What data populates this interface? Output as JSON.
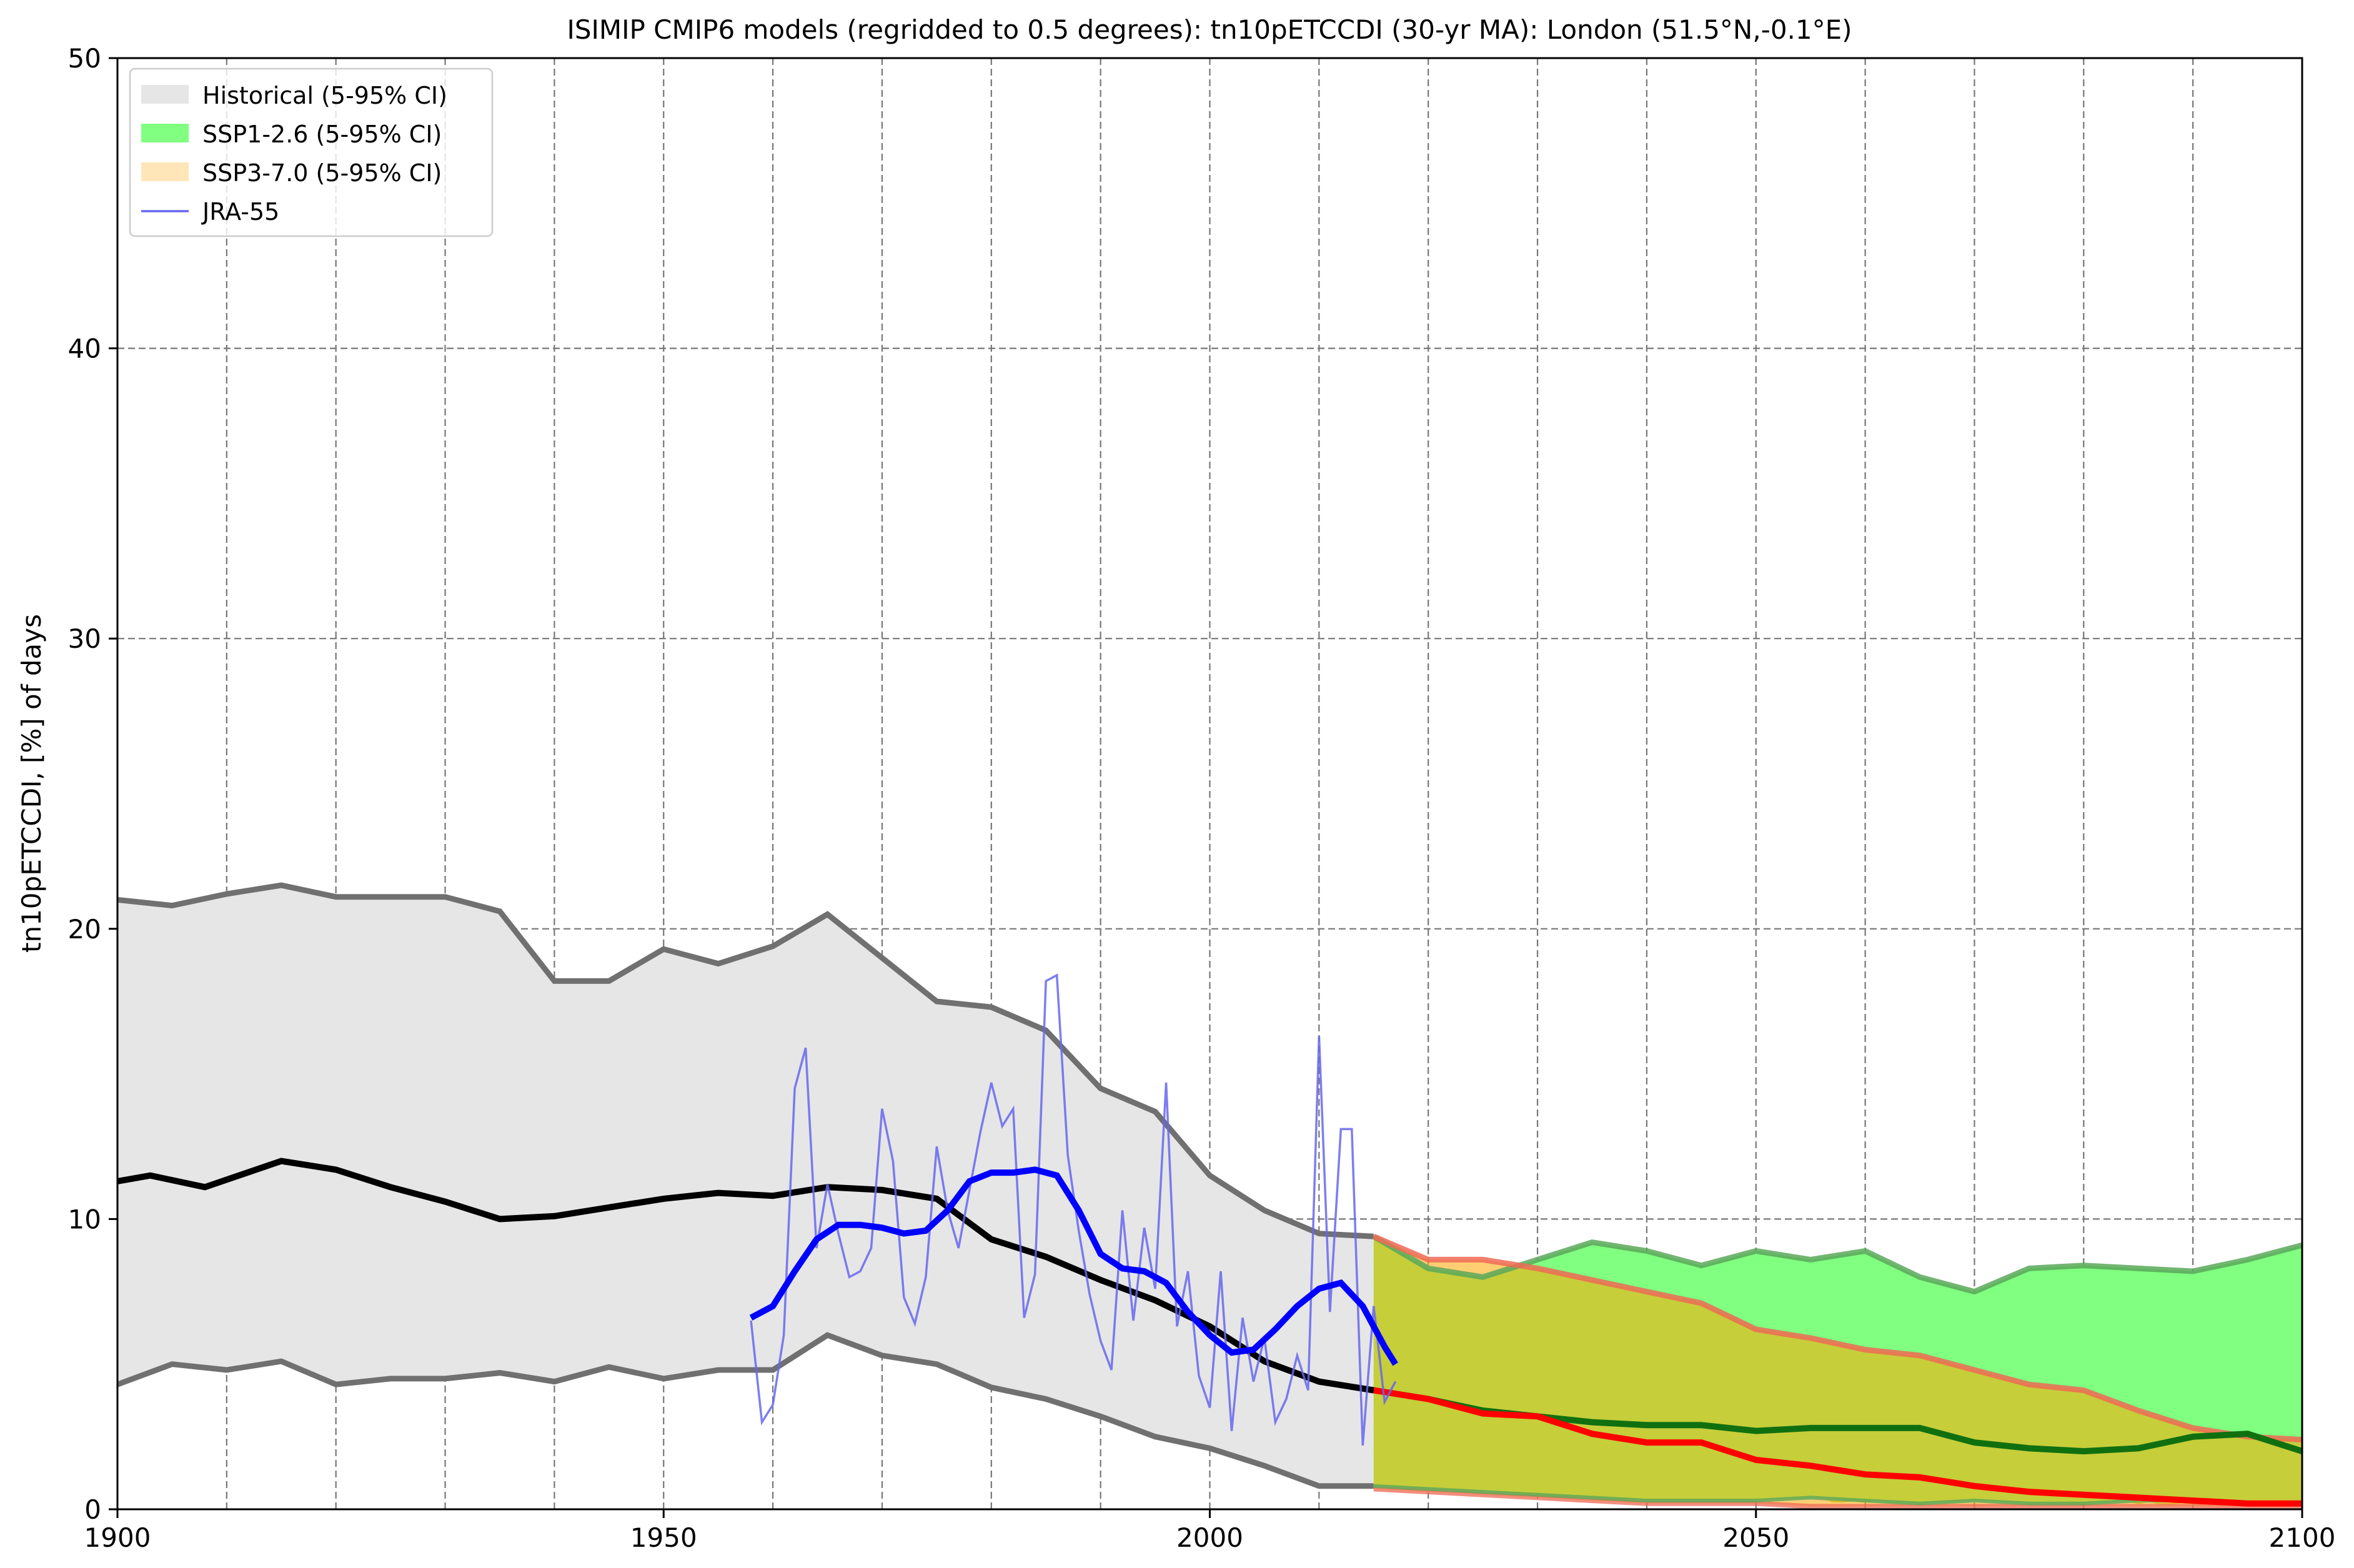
{
  "chart_data": {
    "type": "line",
    "title": "ISIMIP CMIP6 models (regridded to 0.5 degrees): tn10pETCCDI (30-yr MA): London (51.5°N,-0.1°E)",
    "xlabel": "",
    "ylabel": "tn10pETCCDI, [%] of days",
    "xlim": [
      1900,
      2100
    ],
    "ylim": [
      0,
      50
    ],
    "x_ticks": [
      "1900",
      "1950",
      "2000",
      "2050",
      "2100"
    ],
    "y_ticks": [
      "0",
      "10",
      "20",
      "30",
      "40",
      "50"
    ],
    "grid": true,
    "legend_position": "upper-left",
    "legend": [
      {
        "label": "Historical (5-95% CI)",
        "kind": "patch",
        "color": "#e6e6e6"
      },
      {
        "label": "SSP1-2.6 (5-95% CI)",
        "kind": "patch",
        "color": "#80ff80"
      },
      {
        "label": "SSP3-7.0 (5-95% CI)",
        "kind": "patch",
        "color": "#ffd280"
      },
      {
        "label": "JRA-55",
        "kind": "line",
        "color": "#6666ee"
      }
    ],
    "colors": {
      "historical_band": "#e6e6e6",
      "historical_bounds": "#707070",
      "historical_members": "#a8a8a8",
      "historical_mean": "#000000",
      "ssp126_band": "#80ff80",
      "ssp126_bounds": "#5aa85a",
      "ssp126_members": "#22ee22",
      "ssp126_mean": "#107010",
      "ssp370_band": "#ffa500",
      "ssp370_bounds": "#ee6a55",
      "ssp370_members": "#aacc00",
      "ssp370_mean": "#ff0000",
      "jra55_annual": "#6666ee",
      "jra55_smooth": "#0000ff",
      "grid": "#777777"
    },
    "series": [
      {
        "name": "Historical (5-95% CI)",
        "role": "band",
        "x": [
          1900,
          1905,
          1910,
          1915,
          1920,
          1925,
          1930,
          1935,
          1940,
          1945,
          1950,
          1955,
          1960,
          1965,
          1970,
          1975,
          1980,
          1985,
          1990,
          1995,
          2000,
          2005,
          2010,
          2015
        ],
        "upper": [
          21.0,
          20.8,
          21.2,
          21.5,
          21.1,
          21.1,
          21.1,
          20.6,
          18.2,
          18.2,
          19.3,
          18.8,
          19.4,
          20.5,
          19.0,
          17.5,
          17.3,
          16.5,
          14.5,
          13.7,
          11.5,
          10.3,
          9.5,
          9.4
        ],
        "lower": [
          4.3,
          5.0,
          4.8,
          5.1,
          4.3,
          4.5,
          4.5,
          4.7,
          4.4,
          4.9,
          4.5,
          4.8,
          4.8,
          6.0,
          5.3,
          5.0,
          4.2,
          3.8,
          3.2,
          2.5,
          2.1,
          1.5,
          0.8,
          0.8
        ]
      },
      {
        "name": "Historical mean",
        "x": [
          1900,
          1903,
          1908,
          1915,
          1920,
          1925,
          1930,
          1935,
          1940,
          1945,
          1950,
          1955,
          1960,
          1965,
          1970,
          1975,
          1980,
          1985,
          1990,
          1995,
          2000,
          2005,
          2010,
          2015
        ],
        "values": [
          11.3,
          11.5,
          11.1,
          12.0,
          11.7,
          11.1,
          10.6,
          10.0,
          10.1,
          10.4,
          10.7,
          10.9,
          10.8,
          11.1,
          11.0,
          10.7,
          9.3,
          8.7,
          7.9,
          7.2,
          6.3,
          5.1,
          4.4,
          4.1
        ]
      },
      {
        "name": "JRA-55",
        "x": [
          1958,
          1959,
          1960,
          1961,
          1962,
          1963,
          1964,
          1965,
          1966,
          1967,
          1968,
          1969,
          1970,
          1971,
          1972,
          1973,
          1974,
          1975,
          1976,
          1977,
          1978,
          1979,
          1980,
          1981,
          1982,
          1983,
          1984,
          1985,
          1986,
          1987,
          1988,
          1989,
          1990,
          1991,
          1992,
          1993,
          1994,
          1995,
          1996,
          1997,
          1998,
          1999,
          2000,
          2001,
          2002,
          2003,
          2004,
          2005,
          2006,
          2007,
          2008,
          2009,
          2010,
          2011,
          2012,
          2013,
          2014,
          2015,
          2016,
          2017
        ],
        "values": [
          6.5,
          3.0,
          3.6,
          6.0,
          14.5,
          15.9,
          9.0,
          11.2,
          9.5,
          8.0,
          8.2,
          9.0,
          13.8,
          12.0,
          7.3,
          6.4,
          8.0,
          12.5,
          10.3,
          9.0,
          11.0,
          13.0,
          14.7,
          13.2,
          13.8,
          6.6,
          8.1,
          18.2,
          18.4,
          12.2,
          9.6,
          7.4,
          5.8,
          4.8,
          10.3,
          6.5,
          9.7,
          7.6,
          14.7,
          6.3,
          8.2,
          4.6,
          3.5,
          8.2,
          2.7,
          6.6,
          4.4,
          5.9,
          3.0,
          3.8,
          5.3,
          4.1,
          16.3,
          6.8,
          13.1,
          13.1,
          2.2,
          7.0,
          3.7,
          4.4
        ]
      },
      {
        "name": "JRA-55 smoothed",
        "x": [
          1958,
          1960,
          1962,
          1964,
          1966,
          1968,
          1970,
          1972,
          1974,
          1976,
          1978,
          1980,
          1982,
          1984,
          1986,
          1988,
          1990,
          1992,
          1994,
          1996,
          1998,
          2000,
          2002,
          2004,
          2006,
          2008,
          2010,
          2012,
          2014,
          2016,
          2017
        ],
        "values": [
          6.6,
          7.0,
          8.2,
          9.3,
          9.8,
          9.8,
          9.7,
          9.5,
          9.6,
          10.3,
          11.3,
          11.6,
          11.6,
          11.7,
          11.5,
          10.3,
          8.8,
          8.3,
          8.2,
          7.8,
          6.8,
          6.0,
          5.4,
          5.5,
          6.2,
          7.0,
          7.6,
          7.8,
          7.0,
          5.6,
          5.0
        ]
      },
      {
        "name": "SSP1-2.6 (5-95% CI)",
        "role": "band",
        "x": [
          2015,
          2020,
          2025,
          2030,
          2035,
          2040,
          2045,
          2050,
          2055,
          2060,
          2065,
          2070,
          2075,
          2080,
          2085,
          2090,
          2095,
          2100
        ],
        "upper": [
          9.4,
          8.3,
          8.0,
          8.6,
          9.2,
          8.9,
          8.4,
          8.9,
          8.6,
          8.9,
          8.0,
          7.5,
          8.3,
          8.4,
          8.3,
          8.2,
          8.6,
          9.1
        ],
        "lower": [
          0.8,
          0.7,
          0.6,
          0.5,
          0.4,
          0.3,
          0.3,
          0.3,
          0.4,
          0.3,
          0.2,
          0.3,
          0.2,
          0.2,
          0.3,
          0.3,
          0.2,
          0.2
        ]
      },
      {
        "name": "SSP1-2.6 mean",
        "x": [
          2015,
          2020,
          2025,
          2030,
          2035,
          2040,
          2045,
          2050,
          2055,
          2060,
          2065,
          2070,
          2075,
          2080,
          2085,
          2090,
          2095,
          2100
        ],
        "values": [
          4.1,
          3.8,
          3.4,
          3.2,
          3.0,
          2.9,
          2.9,
          2.7,
          2.8,
          2.8,
          2.8,
          2.3,
          2.1,
          2.0,
          2.1,
          2.5,
          2.6,
          2.0
        ]
      },
      {
        "name": "SSP3-7.0 (5-95% CI)",
        "role": "band",
        "x": [
          2015,
          2020,
          2025,
          2030,
          2035,
          2040,
          2045,
          2050,
          2055,
          2060,
          2065,
          2070,
          2075,
          2080,
          2085,
          2090,
          2095,
          2100
        ],
        "upper": [
          9.4,
          8.6,
          8.6,
          8.3,
          7.9,
          7.5,
          7.1,
          6.2,
          5.9,
          5.5,
          5.3,
          4.8,
          4.3,
          4.1,
          3.4,
          2.8,
          2.5,
          2.4
        ],
        "lower": [
          0.7,
          0.6,
          0.5,
          0.4,
          0.3,
          0.2,
          0.2,
          0.2,
          0.1,
          0.1,
          0.1,
          0.1,
          0.1,
          0.1,
          0.1,
          0.1,
          0.1,
          0.1
        ]
      },
      {
        "name": "SSP3-7.0 mean",
        "x": [
          2015,
          2020,
          2025,
          2030,
          2035,
          2040,
          2045,
          2050,
          2055,
          2060,
          2065,
          2070,
          2075,
          2080,
          2085,
          2090,
          2095,
          2100
        ],
        "values": [
          4.1,
          3.8,
          3.3,
          3.2,
          2.6,
          2.3,
          2.3,
          1.7,
          1.5,
          1.2,
          1.1,
          0.8,
          0.6,
          0.5,
          0.4,
          0.3,
          0.2,
          0.2
        ]
      }
    ]
  }
}
